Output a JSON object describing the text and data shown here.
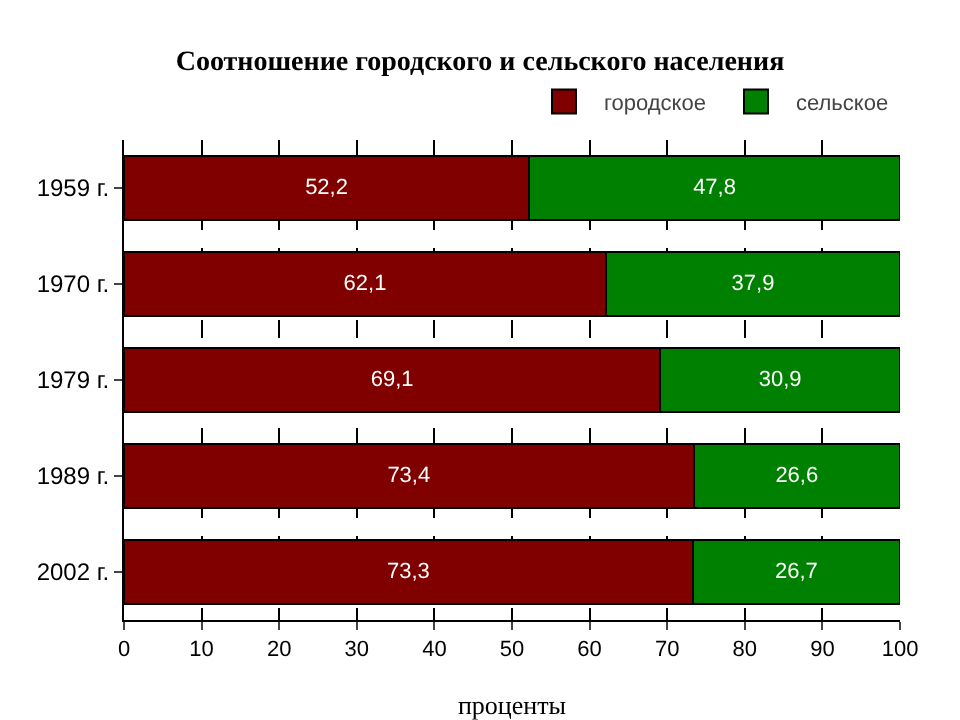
{
  "chart_data": {
    "type": "bar",
    "orientation": "horizontal",
    "stacked": true,
    "title": "Соотношение городского и сельского населения",
    "xlabel": "проценты",
    "categories": [
      "1959 г.",
      "1970 г.",
      "1979 г.",
      "1989 г.",
      "2002 г."
    ],
    "series": [
      {
        "name": "городское",
        "color": "#800000",
        "values": [
          52.2,
          62.1,
          69.1,
          73.4,
          73.3
        ],
        "value_labels": [
          "52,2",
          "62,1",
          "69,1",
          "73,4",
          "73,3"
        ]
      },
      {
        "name": "сельское",
        "color": "#008000",
        "values": [
          47.8,
          37.9,
          30.9,
          26.6,
          26.7
        ],
        "value_labels": [
          "47,8",
          "37,9",
          "30,9",
          "26,6",
          "26,7"
        ]
      }
    ],
    "xlim": [
      0,
      100
    ],
    "xticks": [
      0,
      10,
      20,
      30,
      40,
      50,
      60,
      70,
      80,
      90,
      100
    ],
    "grid": "x",
    "legend": "top right"
  }
}
